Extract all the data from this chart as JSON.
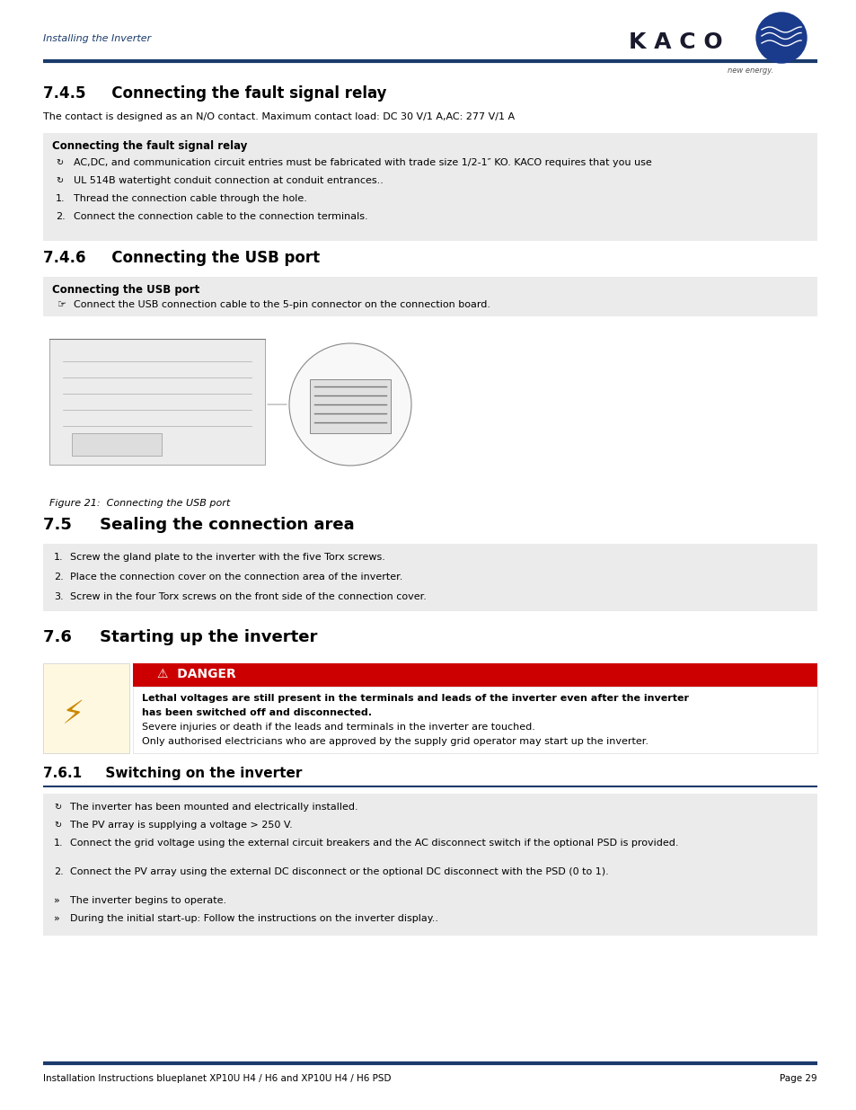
{
  "page_width": 9.54,
  "page_height": 12.35,
  "bg_color": "#ffffff",
  "header_text": "Installing the Inverter",
  "header_color": "#1a3a6b",
  "divider_color": "#1a3a6b",
  "footer_left": "Installation Instructions blueplanet XP10U H4 / H6 and XP10U H4 / H6 PSD",
  "footer_right": "Page 29",
  "section_745_title": "7.4.5     Connecting the fault signal relay",
  "section_745_intro": "The contact is designed as an N/O contact. Maximum contact load: DC 30 V/1 A,AC: 277 V/1 A",
  "box_745_title": "Connecting the fault signal relay",
  "box_745_items": [
    {
      "type": "bullet_circle",
      "text": "AC,DC, and communication circuit entries must be fabricated with trade size 1/2-1″ KO. KACO requires that you use"
    },
    {
      "type": "bullet_circle",
      "text": "UL 514B watertight conduit connection at conduit entrances.."
    },
    {
      "type": "numbered",
      "num": "1.",
      "text": "Thread the connection cable through the hole."
    },
    {
      "type": "numbered",
      "num": "2.",
      "text": "Connect the connection cable to the connection terminals."
    }
  ],
  "section_746_title": "7.4.6     Connecting the USB port",
  "box_746_title": "Connecting the USB port",
  "box_746_items": [
    {
      "type": "arrow",
      "text": "Connect the USB connection cable to the 5-pin connector on the connection board."
    }
  ],
  "figure_caption": "Figure 21:  Connecting the USB port",
  "section_75_title": "7.5     Sealing the connection area",
  "box_75_items": [
    {
      "type": "numbered",
      "num": "1.",
      "text": "Screw the gland plate to the inverter with the five Torx screws."
    },
    {
      "type": "numbered",
      "num": "2.",
      "text": "Place the connection cover on the connection area of the inverter."
    },
    {
      "type": "numbered",
      "num": "3.",
      "text": "Screw in the four Torx screws on the front side of the connection cover."
    }
  ],
  "section_76_title": "7.6     Starting up the inverter",
  "danger_label": "DANGER",
  "danger_bold1": "Lethal voltages are still present in the terminals and leads of the inverter even after the inverter",
  "danger_bold2": "has been switched off and disconnected.",
  "danger_line1": "Severe injuries or death if the leads and terminals in the inverter are touched.",
  "danger_line2": "Only authorised electricians who are approved by the supply grid operator may start up the inverter.",
  "section_761_title": "7.6.1     Switching on the inverter",
  "box_761_items": [
    {
      "type": "bullet_circle",
      "text": "The inverter has been mounted and electrically installed."
    },
    {
      "type": "bullet_circle",
      "text": "The PV array is supplying a voltage > 250 V."
    },
    {
      "type": "numbered",
      "num": "1.",
      "text": "Connect the grid voltage using the external circuit breakers and the AC disconnect switch if the optional PSD is provided."
    },
    {
      "type": "numbered",
      "num": "2.",
      "text": "Connect the PV array using the external DC disconnect or the optional DC disconnect with the PSD (0 to 1)."
    },
    {
      "type": "arrow_result",
      "text": "The inverter begins to operate."
    },
    {
      "type": "arrow_result",
      "text": "During the initial start-up: Follow the instructions on the inverter display.."
    }
  ],
  "kaco_color": "#1a1a2e",
  "danger_red": "#cc0000",
  "box_gray": "#ebebeb"
}
